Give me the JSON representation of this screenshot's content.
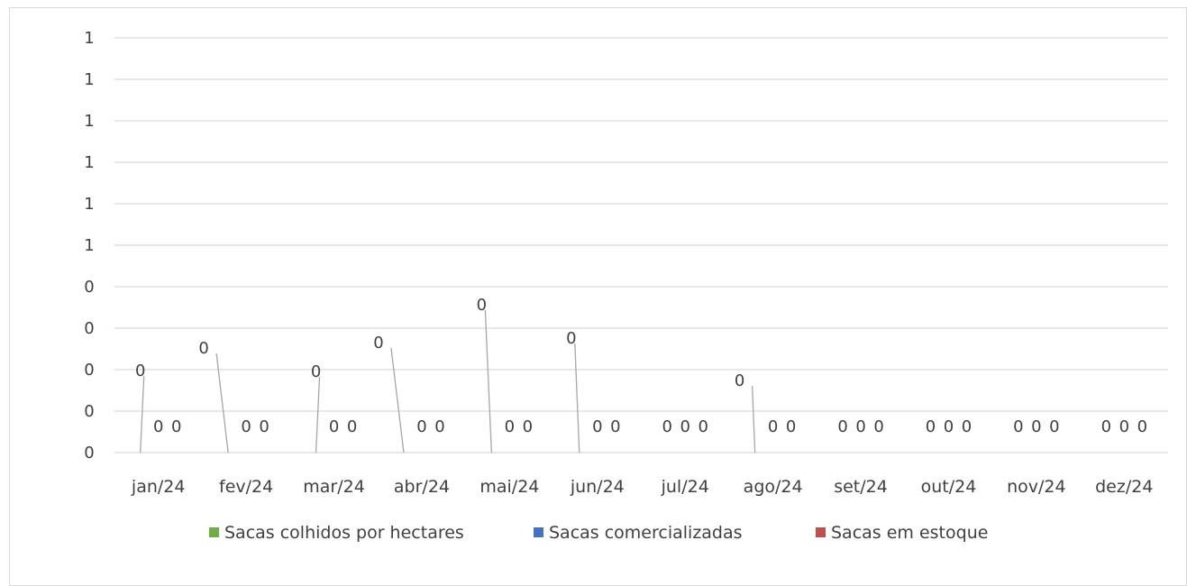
{
  "chart_data": {
    "type": "bar",
    "categories": [
      "jan/24",
      "fev/24",
      "mar/24",
      "abr/24",
      "mai/24",
      "jun/24",
      "jul/24",
      "ago/24",
      "set/24",
      "out/24",
      "nov/24",
      "dez/24"
    ],
    "y_tick_labels": [
      "1",
      "1",
      "1",
      "1",
      "1",
      "1",
      "0",
      "0",
      "0",
      "0",
      "0"
    ],
    "series": [
      {
        "name": "Sacas colhidos por hectares",
        "color": "#70ad47",
        "values": [
          0,
          0,
          0,
          0,
          0,
          0,
          0,
          0,
          0,
          0,
          0,
          0
        ],
        "value_labels": [
          "0",
          "0",
          "0",
          "0",
          "0",
          "0",
          "0",
          "0",
          "0",
          "0",
          "0",
          "0"
        ]
      },
      {
        "name": "Sacas comercializadas",
        "color": "#4472c4",
        "values": [
          0,
          0,
          0,
          0,
          0,
          0,
          0,
          0,
          0,
          0,
          0,
          0
        ],
        "value_labels": [
          "0",
          "0",
          "0",
          "0",
          "0",
          "0",
          "0",
          "0",
          "0",
          "0",
          "0",
          "0"
        ]
      },
      {
        "name": "Sacas em estoque",
        "color": "#c0504d",
        "values": [
          0,
          0,
          0,
          0,
          0,
          0,
          0,
          0,
          0,
          0,
          0,
          0
        ],
        "value_labels": [
          "0",
          "0",
          "0",
          "0",
          "0",
          "0",
          "0",
          "0",
          "0",
          "0",
          "0",
          "0"
        ]
      }
    ],
    "gridlines": true,
    "legend_position": "bottom"
  }
}
